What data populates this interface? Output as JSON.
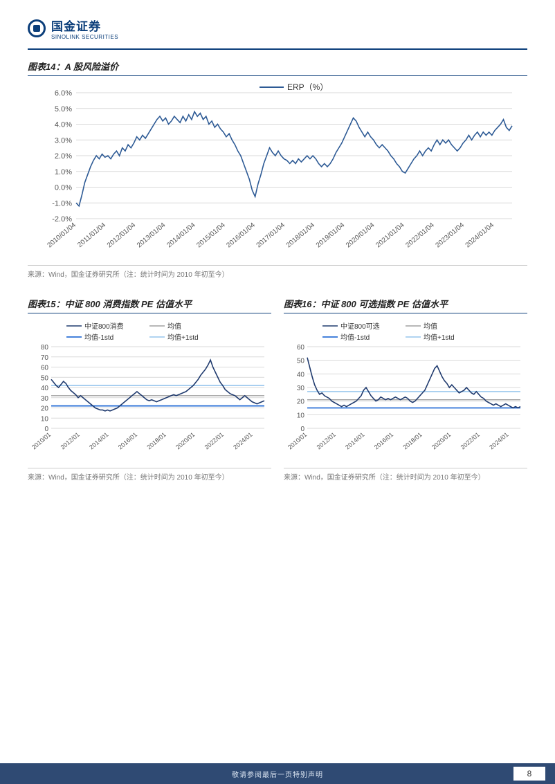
{
  "brand": {
    "cn": "国金证券",
    "en": "SINOLINK SECURITIES"
  },
  "footer_text": "敬请参阅最后一页特别声明",
  "page_number": "8",
  "fig14": {
    "title": "图表14：A 股风险溢价",
    "source": "来源：Wind，国金证券研究所（注：统计时间为 2010 年初至今）",
    "type": "line",
    "legend": [
      "ERP（%）"
    ],
    "y_ticks": [
      "-2.0%",
      "-1.0%",
      "0.0%",
      "1.0%",
      "2.0%",
      "3.0%",
      "4.0%",
      "5.0%",
      "6.0%"
    ],
    "y_min": -2.0,
    "y_max": 6.0,
    "x_labels": [
      "2010/01/04",
      "2011/01/04",
      "2012/01/04",
      "2013/01/04",
      "2014/01/04",
      "2015/01/04",
      "2016/01/04",
      "2017/01/04",
      "2018/01/04",
      "2019/01/04",
      "2020/01/04",
      "2021/01/04",
      "2022/01/04",
      "2023/01/04",
      "2024/01/04"
    ],
    "series_color": "#2d5a95",
    "grid_color": "#d9d9d9",
    "data": [
      -1.0,
      -1.2,
      -0.5,
      0.3,
      0.8,
      1.3,
      1.7,
      2.0,
      1.8,
      2.1,
      1.9,
      2.0,
      1.8,
      2.1,
      2.3,
      2.0,
      2.5,
      2.3,
      2.7,
      2.5,
      2.8,
      3.2,
      3.0,
      3.3,
      3.1,
      3.4,
      3.7,
      4.0,
      4.3,
      4.5,
      4.2,
      4.4,
      4.0,
      4.2,
      4.5,
      4.3,
      4.1,
      4.5,
      4.2,
      4.6,
      4.3,
      4.8,
      4.5,
      4.7,
      4.3,
      4.5,
      4.0,
      4.2,
      3.8,
      4.0,
      3.7,
      3.5,
      3.2,
      3.4,
      3.0,
      2.7,
      2.3,
      2.0,
      1.5,
      1.0,
      0.5,
      -0.2,
      -0.6,
      0.2,
      0.8,
      1.5,
      2.0,
      2.5,
      2.2,
      2.0,
      2.3,
      2.0,
      1.8,
      1.7,
      1.5,
      1.7,
      1.5,
      1.8,
      1.6,
      1.8,
      2.0,
      1.8,
      2.0,
      1.8,
      1.5,
      1.3,
      1.5,
      1.3,
      1.5,
      1.8,
      2.2,
      2.5,
      2.8,
      3.2,
      3.6,
      4.0,
      4.4,
      4.2,
      3.8,
      3.5,
      3.2,
      3.5,
      3.2,
      3.0,
      2.7,
      2.5,
      2.7,
      2.5,
      2.3,
      2.0,
      1.8,
      1.5,
      1.3,
      1.0,
      0.9,
      1.2,
      1.5,
      1.8,
      2.0,
      2.3,
      2.0,
      2.3,
      2.5,
      2.3,
      2.7,
      3.0,
      2.7,
      3.0,
      2.8,
      3.0,
      2.7,
      2.5,
      2.3,
      2.5,
      2.8,
      3.0,
      3.3,
      3.0,
      3.3,
      3.5,
      3.2,
      3.5,
      3.3,
      3.5,
      3.3,
      3.6,
      3.8,
      4.0,
      4.3,
      3.8,
      3.6,
      3.9
    ]
  },
  "fig15": {
    "title": "图表15：中证 800 消费指数 PE 估值水平",
    "source": "来源：Wind，国金证券研究所（注：统计时间为 2010 年初至今）",
    "type": "line",
    "legend": [
      {
        "label": "中证800消费",
        "color": "#1f3a6e",
        "style": "solid",
        "w": 1.6
      },
      {
        "label": "均值",
        "color": "#a0a0a0",
        "style": "solid",
        "w": 1.4
      },
      {
        "label": "均值-1std",
        "color": "#2a6fd6",
        "style": "solid",
        "w": 1.8
      },
      {
        "label": "均值+1std",
        "color": "#a5cdef",
        "style": "solid",
        "w": 1.8
      }
    ],
    "y_ticks": [
      0,
      10,
      20,
      30,
      40,
      50,
      60,
      70,
      80
    ],
    "y_min": 0,
    "y_max": 80,
    "x_labels": [
      "2010/01",
      "2012/01",
      "2014/01",
      "2016/01",
      "2018/01",
      "2020/01",
      "2022/01",
      "2024/01"
    ],
    "mean": 32,
    "lower": 22,
    "upper": 42,
    "grid_color": "#d9d9d9",
    "data": [
      48,
      45,
      42,
      40,
      43,
      46,
      44,
      40,
      37,
      35,
      33,
      30,
      32,
      30,
      28,
      26,
      24,
      22,
      20,
      19,
      18,
      18,
      17,
      18,
      17,
      18,
      19,
      20,
      22,
      24,
      26,
      28,
      30,
      32,
      34,
      36,
      34,
      32,
      30,
      28,
      27,
      28,
      27,
      26,
      27,
      28,
      29,
      30,
      31,
      32,
      33,
      32,
      33,
      34,
      35,
      36,
      38,
      40,
      42,
      45,
      48,
      52,
      55,
      58,
      62,
      67,
      60,
      55,
      50,
      45,
      42,
      38,
      36,
      34,
      33,
      32,
      30,
      28,
      30,
      32,
      30,
      28,
      26,
      25,
      24,
      25,
      26,
      27
    ]
  },
  "fig16": {
    "title": "图表16：中证 800 可选指数 PE 估值水平",
    "source": "来源：Wind，国金证券研究所（注：统计时间为 2010 年初至今）",
    "type": "line",
    "legend": [
      {
        "label": "中证800可选",
        "color": "#1f3a6e",
        "style": "solid",
        "w": 1.6
      },
      {
        "label": "均值",
        "color": "#a0a0a0",
        "style": "solid",
        "w": 1.4
      },
      {
        "label": "均值-1std",
        "color": "#2a6fd6",
        "style": "solid",
        "w": 1.8
      },
      {
        "label": "均值+1std",
        "color": "#a5cdef",
        "style": "solid",
        "w": 1.8
      }
    ],
    "y_ticks": [
      0,
      10,
      20,
      30,
      40,
      50,
      60
    ],
    "y_min": 0,
    "y_max": 60,
    "x_labels": [
      "2010/01",
      "2012/01",
      "2014/01",
      "2016/01",
      "2018/01",
      "2020/01",
      "2022/01",
      "2024/01"
    ],
    "mean": 21,
    "lower": 15,
    "upper": 27,
    "grid_color": "#d9d9d9",
    "data": [
      52,
      45,
      38,
      32,
      28,
      25,
      26,
      24,
      23,
      22,
      20,
      19,
      18,
      17,
      16,
      17,
      16,
      17,
      18,
      19,
      20,
      22,
      24,
      28,
      30,
      27,
      24,
      22,
      20,
      21,
      23,
      22,
      21,
      22,
      21,
      22,
      23,
      22,
      21,
      22,
      23,
      22,
      20,
      19,
      20,
      22,
      24,
      26,
      28,
      32,
      36,
      40,
      44,
      46,
      42,
      38,
      35,
      33,
      30,
      32,
      30,
      28,
      26,
      27,
      28,
      30,
      28,
      26,
      25,
      27,
      25,
      23,
      22,
      20,
      19,
      18,
      17,
      18,
      17,
      16,
      17,
      18,
      17,
      16,
      15,
      16,
      15,
      16
    ]
  }
}
